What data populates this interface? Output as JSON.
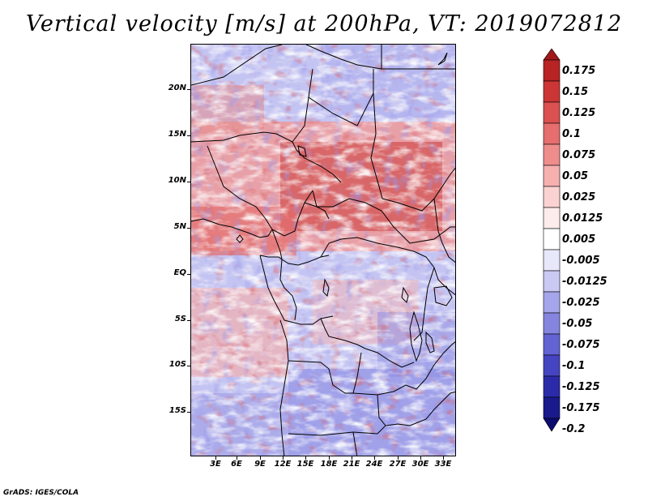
{
  "title": "Vertical velocity [m/s] at 200hPa, VT: 2019072812",
  "map": {
    "lat_labels": [
      "20N",
      "15N",
      "10N",
      "5N",
      "EQ",
      "5S",
      "10S",
      "15S"
    ],
    "lon_labels": [
      "3E",
      "6E",
      "9E",
      "12E",
      "15E",
      "18E",
      "21E",
      "24E",
      "27E",
      "30E",
      "33E"
    ]
  },
  "colorbar": {
    "labels": [
      "0.175",
      "0.15",
      "0.125",
      "0.1",
      "0.075",
      "0.05",
      "0.025",
      "0.0125",
      "0.005",
      "-0.005",
      "-0.0125",
      "-0.025",
      "-0.05",
      "-0.075",
      "-0.1",
      "-0.125",
      "-0.175",
      "-0.2"
    ],
    "colors": [
      "#a01818",
      "#b82323",
      "#cc3535",
      "#db5050",
      "#e66e6e",
      "#ef8d8d",
      "#f6b0b0",
      "#fbd2d2",
      "#fdecec",
      "#ffffff",
      "#e8e8fb",
      "#c9c9f4",
      "#a5a5ec",
      "#8585e0",
      "#6363d3",
      "#4545c2",
      "#2b2baa",
      "#1a1a8c",
      "#0b0b70"
    ]
  },
  "footer": "GrADS: IGES/COLA"
}
